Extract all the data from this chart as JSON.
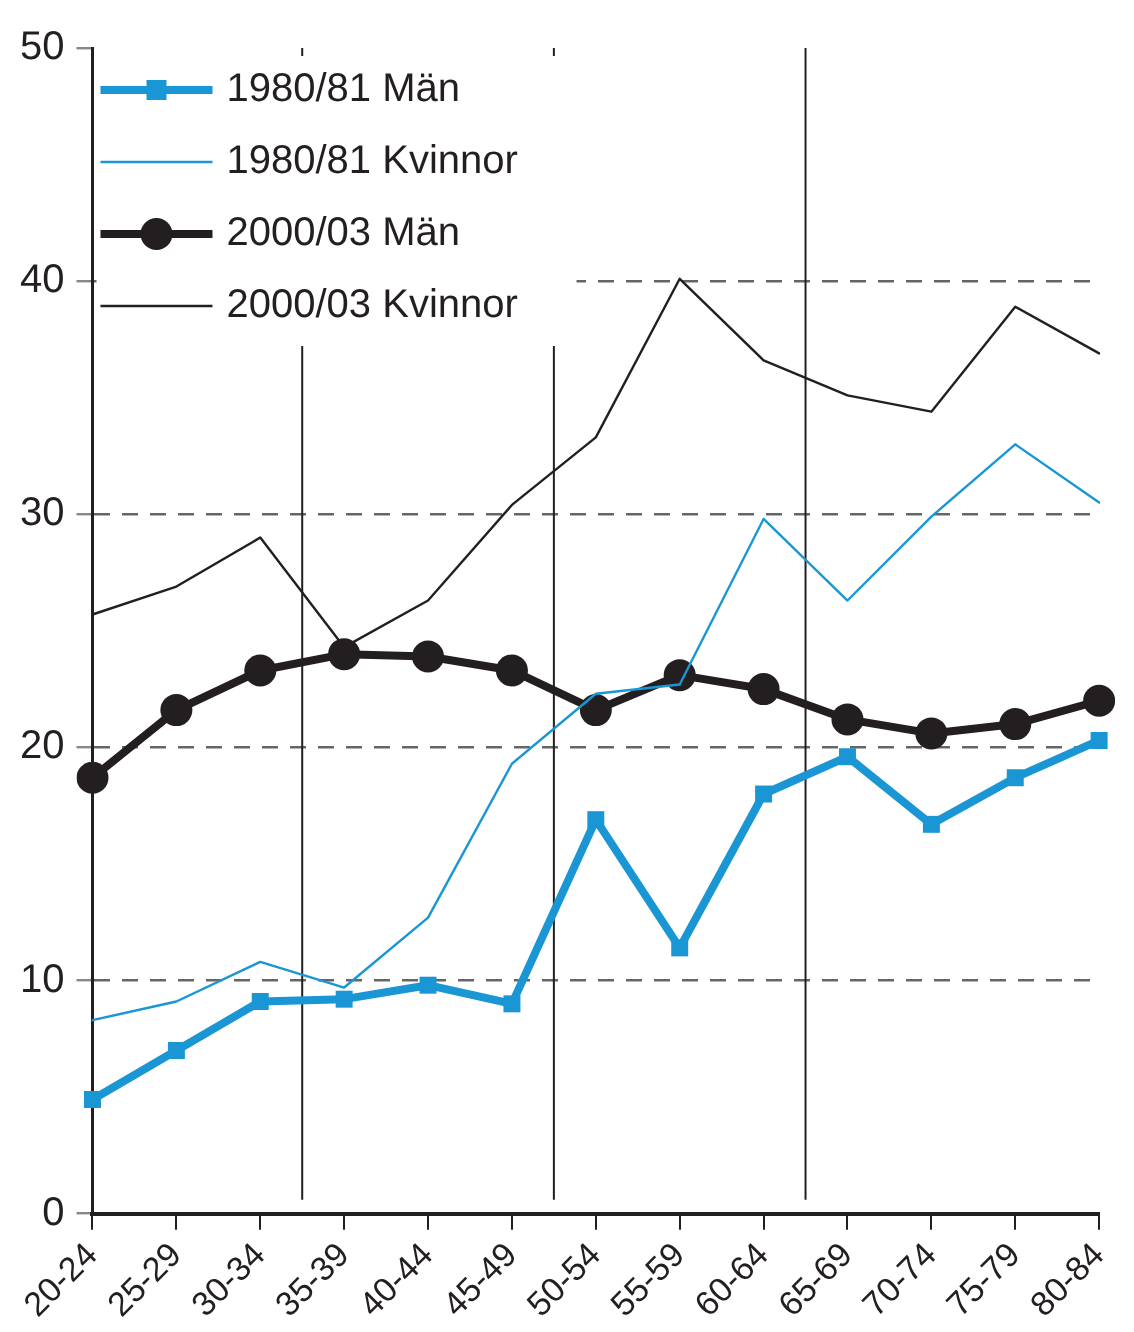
{
  "chart_data": {
    "type": "line",
    "categories": [
      "20-24",
      "25-29",
      "30-34",
      "35-39",
      "40-44",
      "45-49",
      "50-54",
      "55-59",
      "60-64",
      "65-69",
      "70-74",
      "75-79",
      "80-84"
    ],
    "series": [
      {
        "name": "1980/81 Män",
        "color": "#1a96d4",
        "marker": "square",
        "values": [
          4.9,
          7.0,
          9.1,
          9.2,
          9.8,
          9.0,
          16.9,
          11.4,
          18.0,
          19.6,
          16.7,
          18.7,
          20.3
        ]
      },
      {
        "name": "1980/81 Kvinnor",
        "color": "#1a96d4",
        "marker": "none",
        "values": [
          8.3,
          9.1,
          10.8,
          9.7,
          12.7,
          19.3,
          22.3,
          22.7,
          29.8,
          26.3,
          29.9,
          33.0,
          30.5
        ]
      },
      {
        "name": "2000/03 Män",
        "color": "#231f20",
        "marker": "circle",
        "values": [
          18.7,
          21.6,
          23.3,
          24.0,
          23.9,
          23.3,
          21.6,
          23.1,
          22.5,
          21.2,
          20.6,
          21.0,
          22.0
        ]
      },
      {
        "name": "2000/03 Kvinnor",
        "color": "#231f20",
        "marker": "none",
        "values": [
          25.7,
          26.9,
          29.0,
          24.3,
          26.3,
          30.4,
          33.3,
          40.1,
          36.6,
          35.1,
          34.4,
          38.9,
          36.9
        ]
      }
    ],
    "ylim": [
      0,
      50
    ],
    "yticks": [
      0,
      10,
      20,
      30,
      40,
      50
    ],
    "grid": "y",
    "legend": "top left",
    "line_style": "solid"
  }
}
